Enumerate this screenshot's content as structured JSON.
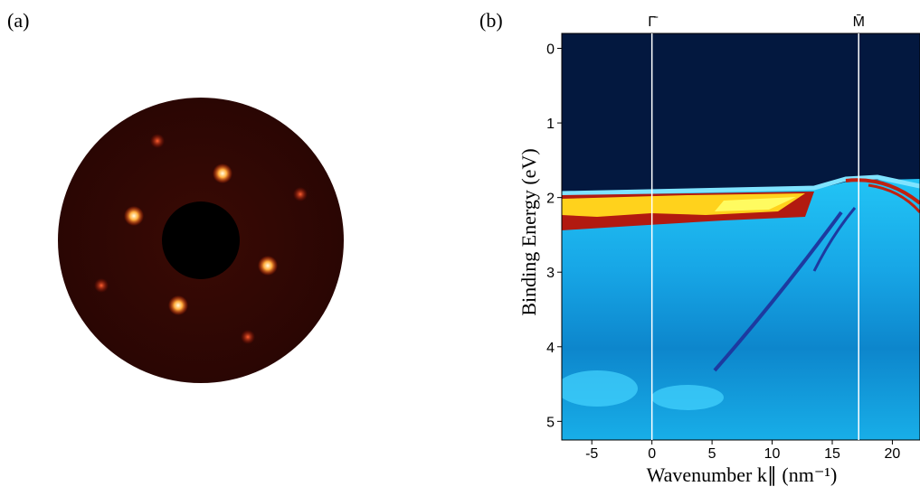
{
  "panels": {
    "a": {
      "label": "(a)"
    }
  },
  "chart_data": {
    "type": "heatmap",
    "panel_label": "(b)",
    "x_label": "Wavenumber k∥ (nm⁻¹)",
    "y_label": "Binding Energy (eV)",
    "xlim": [
      -7.5,
      22.3
    ],
    "ylim": [
      -0.2,
      5.25
    ],
    "y_inverted": true,
    "xticks": [
      -5,
      0,
      5,
      10,
      15,
      20
    ],
    "yticks": [
      0,
      1,
      2,
      3,
      4,
      5
    ],
    "annotations": [
      {
        "label": "Γ̄",
        "x": 0
      },
      {
        "label": "M̄",
        "x": 17.2
      }
    ]
  }
}
